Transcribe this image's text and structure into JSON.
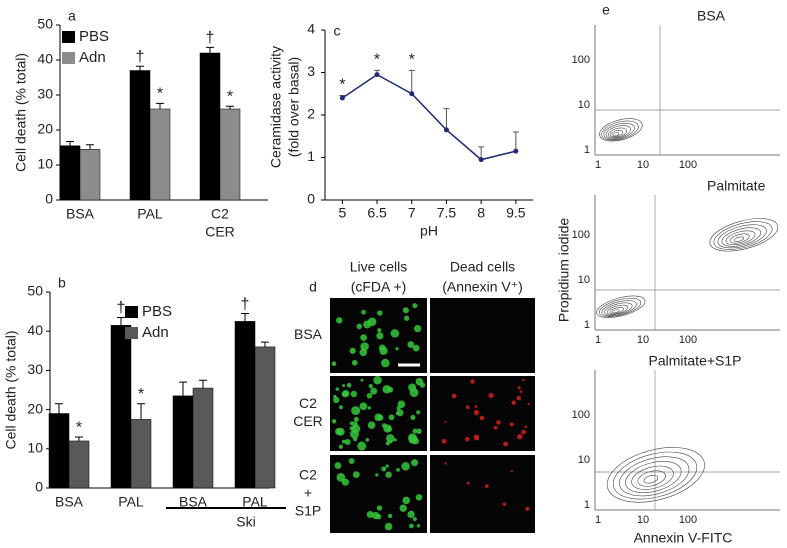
{
  "chart_data": [
    {
      "type": "bar",
      "label": "a",
      "ylabel": "Cell death (% total)",
      "categories": [
        [
          "BSA"
        ],
        [
          "PAL"
        ],
        [
          "C2",
          "CER"
        ]
      ],
      "series": [
        {
          "name": "PBS",
          "color": "#000000",
          "values": [
            15.5,
            37,
            42
          ],
          "errors": [
            1.2,
            1.2,
            1.6
          ],
          "markers": [
            null,
            "†",
            "†"
          ]
        },
        {
          "name": "Adn",
          "color": "#8c8c8c",
          "values": [
            14.5,
            26,
            26
          ],
          "errors": [
            1.3,
            1.6,
            0.8
          ],
          "markers": [
            null,
            "*",
            "*"
          ]
        }
      ],
      "ylim": [
        0,
        50
      ],
      "yticks": [
        0,
        10,
        20,
        30,
        40,
        50
      ]
    },
    {
      "type": "bar",
      "label": "b",
      "ylabel": "Cell death (% total)",
      "categories": [
        [
          "BSA"
        ],
        [
          "PAL"
        ],
        [
          "BSA"
        ],
        [
          "PAL"
        ]
      ],
      "groups": [
        {
          "name": "Ski",
          "from": 2,
          "to": 3
        }
      ],
      "series": [
        {
          "name": "PBS",
          "color": "#000000",
          "values": [
            19,
            41.5,
            23.5,
            42.5
          ],
          "errors": [
            2.5,
            2,
            3.5,
            2
          ],
          "markers": [
            null,
            "†",
            null,
            "†"
          ]
        },
        {
          "name": "Adn",
          "color": "#595959",
          "values": [
            12,
            17.5,
            25.5,
            36
          ],
          "errors": [
            1,
            4,
            2,
            1.2
          ],
          "markers": [
            "*",
            "*",
            null,
            null
          ]
        }
      ],
      "ylim": [
        0,
        50
      ],
      "yticks": [
        0,
        10,
        20,
        30,
        40,
        50
      ]
    },
    {
      "type": "line",
      "label": "c",
      "ylabel": [
        "Ceramidase activity",
        "(fold over basal)"
      ],
      "xlabel": "pH",
      "categories": [
        "5",
        "6.5",
        "7",
        "7.5",
        "8",
        "9.5"
      ],
      "values": [
        2.4,
        2.95,
        2.5,
        1.65,
        0.95,
        1.15
      ],
      "errors": [
        0.06,
        0.1,
        0.55,
        0.5,
        0.3,
        0.45
      ],
      "markers": [
        "*",
        "*",
        "*",
        null,
        null,
        null
      ],
      "color": "#1f2a7a",
      "ylim": [
        0,
        4
      ],
      "yticks": [
        0,
        1,
        2,
        3,
        4
      ]
    },
    {
      "type": "image-grid",
      "label": "d",
      "columns": [
        [
          "Live cells",
          "(cFDA +)"
        ],
        [
          "Dead cells",
          "(Annexin V⁺)"
        ]
      ],
      "rows": [
        [
          "BSA"
        ],
        [
          "C2",
          "CER"
        ],
        [
          "C2",
          "+",
          "S1P"
        ]
      ]
    },
    {
      "type": "contour",
      "label": "e",
      "xlabel": "Annexin V-FITC",
      "ylabel": "Propidium iodide",
      "panels": [
        "BSA",
        "Palmitate",
        "Palmitate+S1P"
      ],
      "log": true,
      "xlim": [
        1,
        300
      ],
      "ylim": [
        1,
        300
      ],
      "xticks": [
        1,
        10,
        100
      ],
      "yticks": [
        1,
        10,
        100
      ]
    }
  ]
}
